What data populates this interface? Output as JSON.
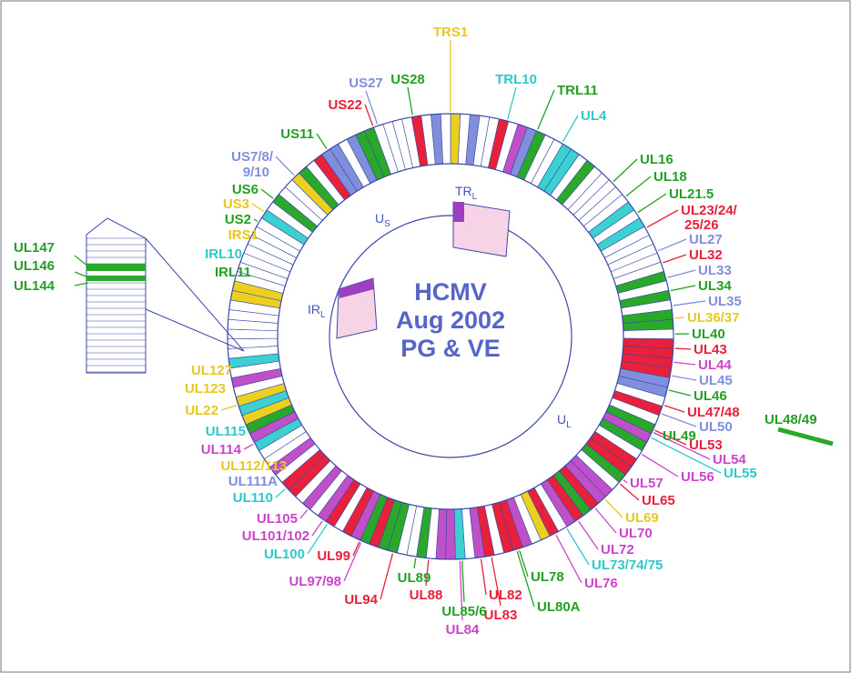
{
  "title_lines": [
    "HCMV",
    "Aug 2002",
    "PG & VE"
  ],
  "region_labels": [
    {
      "text": "U",
      "sub": "S"
    },
    {
      "text": "TR",
      "sub": "L"
    },
    {
      "text": "IR",
      "sub": "L"
    },
    {
      "text": "U",
      "sub": "L"
    }
  ],
  "labels": [
    {
      "text": "TRS1",
      "color": "#e8c81e"
    },
    {
      "text": "US28",
      "color": "#22a022"
    },
    {
      "text": "US27",
      "color": "#7f8fdc"
    },
    {
      "text": "US22",
      "color": "#e8203a"
    },
    {
      "text": "TRL10",
      "color": "#2ec8c8"
    },
    {
      "text": "TRL11",
      "color": "#22a022"
    },
    {
      "text": "UL4",
      "color": "#2ec8c8"
    },
    {
      "text": "US11",
      "color": "#22a022"
    },
    {
      "text": "US7/8/",
      "color": "#7f8fdc"
    },
    {
      "text": "9/10",
      "color": "#7f8fdc"
    },
    {
      "text": "US6",
      "color": "#22a022"
    },
    {
      "text": "US3",
      "color": "#e8c81e"
    },
    {
      "text": "US2",
      "color": "#22a022"
    },
    {
      "text": "IRS1",
      "color": "#e8c81e"
    },
    {
      "text": "IRL10",
      "color": "#2ec8c8"
    },
    {
      "text": "IRL11",
      "color": "#22a022"
    },
    {
      "text": "UL147",
      "color": "#22a022"
    },
    {
      "text": "UL146",
      "color": "#22a022"
    },
    {
      "text": "UL144",
      "color": "#22a022"
    },
    {
      "text": "UL16",
      "color": "#22a022"
    },
    {
      "text": "UL18",
      "color": "#22a022"
    },
    {
      "text": "UL21.5",
      "color": "#22a022"
    },
    {
      "text": "UL23/24/",
      "color": "#e8203a"
    },
    {
      "text": "25/26",
      "color": "#e8203a"
    },
    {
      "text": "UL27",
      "color": "#7f8fdc"
    },
    {
      "text": "UL32",
      "color": "#e8203a"
    },
    {
      "text": "UL33",
      "color": "#7f8fdc"
    },
    {
      "text": "UL34",
      "color": "#22a022"
    },
    {
      "text": "UL35",
      "color": "#7f8fdc"
    },
    {
      "text": "UL36/37",
      "color": "#e8c81e"
    },
    {
      "text": "UL40",
      "color": "#22a022"
    },
    {
      "text": "UL43",
      "color": "#e8203a"
    },
    {
      "text": "UL44",
      "color": "#cc44cc"
    },
    {
      "text": "UL45",
      "color": "#7f8fdc"
    },
    {
      "text": "UL46",
      "color": "#22a022"
    },
    {
      "text": "UL47/48",
      "color": "#e8203a"
    },
    {
      "text": "UL48/49",
      "color": "#22a022"
    },
    {
      "text": "UL50",
      "color": "#7f8fdc"
    },
    {
      "text": "UL49",
      "color": "#22a022"
    },
    {
      "text": "UL53",
      "color": "#e8203a"
    },
    {
      "text": "UL54",
      "color": "#cc44cc"
    },
    {
      "text": "UL55",
      "color": "#2ec8c8"
    },
    {
      "text": "UL56",
      "color": "#cc44cc"
    },
    {
      "text": "UL57",
      "color": "#cc44cc"
    },
    {
      "text": "UL65",
      "color": "#e8203a"
    },
    {
      "text": "UL69",
      "color": "#e8c81e"
    },
    {
      "text": "UL70",
      "color": "#cc44cc"
    },
    {
      "text": "UL72",
      "color": "#cc44cc"
    },
    {
      "text": "UL73/74/75",
      "color": "#2ec8c8"
    },
    {
      "text": "UL76",
      "color": "#cc44cc"
    },
    {
      "text": "UL78",
      "color": "#22a022"
    },
    {
      "text": "UL80A",
      "color": "#22a022"
    },
    {
      "text": "UL82",
      "color": "#e8203a"
    },
    {
      "text": "UL83",
      "color": "#e8203a"
    },
    {
      "text": "UL84",
      "color": "#cc44cc"
    },
    {
      "text": "UL85/6",
      "color": "#22a022"
    },
    {
      "text": "UL88",
      "color": "#e8203a"
    },
    {
      "text": "UL89",
      "color": "#22a022"
    },
    {
      "text": "UL94",
      "color": "#e8203a"
    },
    {
      "text": "UL97/98",
      "color": "#cc44cc"
    },
    {
      "text": "UL99",
      "color": "#e8203a"
    },
    {
      "text": "UL100",
      "color": "#2ec8c8"
    },
    {
      "text": "UL101/102",
      "color": "#cc44cc"
    },
    {
      "text": "UL105",
      "color": "#cc44cc"
    },
    {
      "text": "UL110",
      "color": "#2ec8c8"
    },
    {
      "text": "UL111A",
      "color": "#7f8fdc"
    },
    {
      "text": "UL112/113",
      "color": "#e8c81e"
    },
    {
      "text": "UL114",
      "color": "#cc44cc"
    },
    {
      "text": "UL115",
      "color": "#2ec8c8"
    },
    {
      "text": "UL22",
      "color": "#e8c81e"
    },
    {
      "text": "UL123",
      "color": "#e8c81e"
    },
    {
      "text": "UL127",
      "color": "#e8c81e"
    }
  ]
}
